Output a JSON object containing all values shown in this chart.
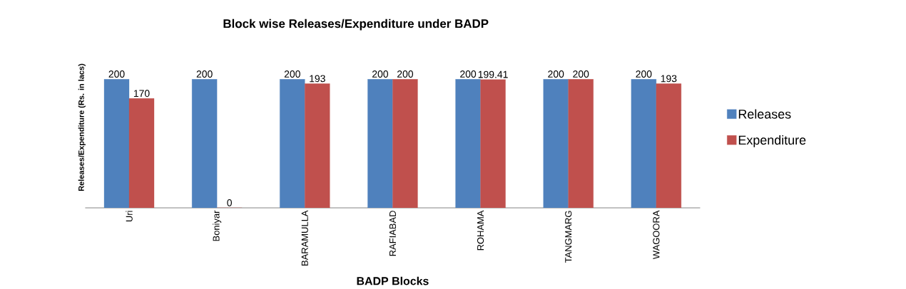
{
  "chart_data": {
    "type": "bar",
    "title": "Block wise Releases/Expenditure under BADP",
    "xlabel": "BADP Blocks",
    "ylabel": "Releases/Expenditure (Rs. in lacs)",
    "categories": [
      "Uri",
      "Boniyar",
      "BARAMULLA",
      "RAFIABAD",
      "ROHAMA",
      "TANGMARG",
      "WAGOORA"
    ],
    "series": [
      {
        "name": "Releases",
        "color": "#4f81bd",
        "values": [
          200,
          200,
          200,
          200,
          200,
          200,
          200
        ]
      },
      {
        "name": "Expenditure",
        "color": "#c0504d",
        "values": [
          170,
          0,
          193,
          200,
          199.41,
          200,
          193
        ]
      }
    ],
    "data_labels": true,
    "legend": "right",
    "tick_labels": "x"
  }
}
